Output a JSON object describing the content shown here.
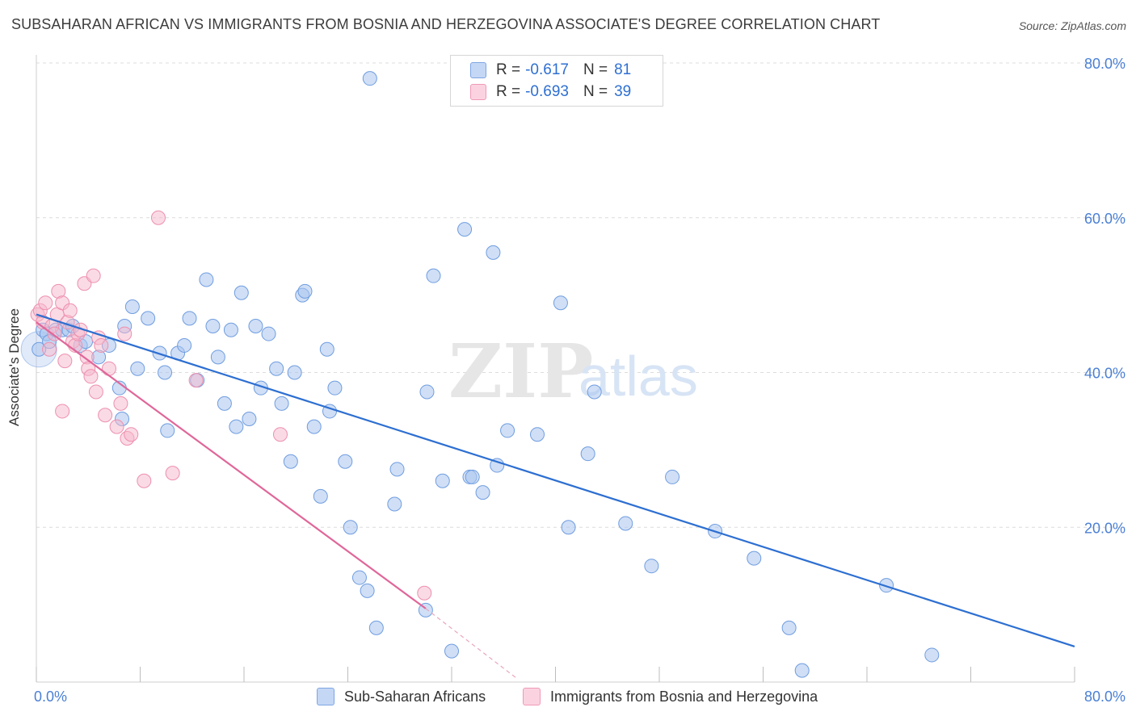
{
  "title": "SUBSAHARAN AFRICAN VS IMMIGRANTS FROM BOSNIA AND HERZEGOVINA ASSOCIATE'S DEGREE CORRELATION CHART",
  "source": "Source: ZipAtlas.com",
  "watermark": {
    "zip": "ZIP",
    "atlas": "atlas"
  },
  "legend": {
    "r_label": "R =",
    "n_label": "N =",
    "rows": [
      {
        "r": "-0.617",
        "n": "81",
        "color": "#a9c4ef"
      },
      {
        "r": "-0.693",
        "n": "39",
        "color": "#f5b8cc"
      }
    ]
  },
  "bottom_legend": [
    "Sub-Saharan Africans",
    "Immigrants from Bosnia and Herzegovina"
  ],
  "colors": {
    "blue_fill": "#a9c4ef",
    "blue_stroke": "#6f9de0",
    "blue_line": "#2d6fd1",
    "pink_fill": "#f5b8cc",
    "pink_stroke": "#ee8fae",
    "pink_line": "#e0679a",
    "grid": "#dcdcdc",
    "tick_text": "#4a7fd4"
  },
  "chart_data": {
    "type": "scatter",
    "ylabel": "Associate's Degree",
    "xlabel": "",
    "xlim": [
      0,
      80
    ],
    "ylim": [
      0,
      80
    ],
    "x_tick_labels": [
      {
        "v": 0,
        "t": "0.0%"
      },
      {
        "v": 80,
        "t": "80.0%"
      }
    ],
    "y_tick_labels": [
      {
        "v": 20,
        "t": "20.0%"
      },
      {
        "v": 40,
        "t": "40.0%"
      },
      {
        "v": 60,
        "t": "60.0%"
      },
      {
        "v": 80,
        "t": "80.0%"
      }
    ],
    "grid": true,
    "series": [
      {
        "name": "Sub-Saharan Africans",
        "r": -0.617,
        "n": 81,
        "trend": [
          [
            0,
            47.5
          ],
          [
            80,
            4.6
          ]
        ],
        "points": [
          [
            0.2,
            43.0
          ],
          [
            0.5,
            45.5
          ],
          [
            0.8,
            45.0
          ],
          [
            1.0,
            44.0
          ],
          [
            1.5,
            45.5
          ],
          [
            2.0,
            45.5
          ],
          [
            2.5,
            45.5
          ],
          [
            2.8,
            46.0
          ],
          [
            3.4,
            43.5
          ],
          [
            3.8,
            44.0
          ],
          [
            4.8,
            42.0
          ],
          [
            5.6,
            43.5
          ],
          [
            6.4,
            38.0
          ],
          [
            6.6,
            34.0
          ],
          [
            6.8,
            46.0
          ],
          [
            7.4,
            48.5
          ],
          [
            7.8,
            40.5
          ],
          [
            8.6,
            47.0
          ],
          [
            9.5,
            42.5
          ],
          [
            9.9,
            40.0
          ],
          [
            10.1,
            32.5
          ],
          [
            10.9,
            42.5
          ],
          [
            11.4,
            43.5
          ],
          [
            11.8,
            47.0
          ],
          [
            12.4,
            39.0
          ],
          [
            13.1,
            52.0
          ],
          [
            13.6,
            46.0
          ],
          [
            14.0,
            42.0
          ],
          [
            14.5,
            36.0
          ],
          [
            15.0,
            45.5
          ],
          [
            15.4,
            33.0
          ],
          [
            15.8,
            50.3
          ],
          [
            16.4,
            34.0
          ],
          [
            16.9,
            46.0
          ],
          [
            17.3,
            38.0
          ],
          [
            17.9,
            45.0
          ],
          [
            18.5,
            40.5
          ],
          [
            18.9,
            36.0
          ],
          [
            19.6,
            28.5
          ],
          [
            19.9,
            40.0
          ],
          [
            20.5,
            50.0
          ],
          [
            20.7,
            50.5
          ],
          [
            21.4,
            33.0
          ],
          [
            21.9,
            24.0
          ],
          [
            22.4,
            43.0
          ],
          [
            22.6,
            35.0
          ],
          [
            23.0,
            38.0
          ],
          [
            23.8,
            28.5
          ],
          [
            24.2,
            20.0
          ],
          [
            24.9,
            13.5
          ],
          [
            25.5,
            11.8
          ],
          [
            25.7,
            78.0
          ],
          [
            26.2,
            7.0
          ],
          [
            27.6,
            23.0
          ],
          [
            27.8,
            27.5
          ],
          [
            30.1,
            37.5
          ],
          [
            30.6,
            52.5
          ],
          [
            31.3,
            26.0
          ],
          [
            32.0,
            4.0
          ],
          [
            33.0,
            58.5
          ],
          [
            33.4,
            26.5
          ],
          [
            33.6,
            26.5
          ],
          [
            34.4,
            24.5
          ],
          [
            35.2,
            55.5
          ],
          [
            35.5,
            28.0
          ],
          [
            36.3,
            32.5
          ],
          [
            38.6,
            32.0
          ],
          [
            40.4,
            49.0
          ],
          [
            41.0,
            20.0
          ],
          [
            42.5,
            29.5
          ],
          [
            43.0,
            37.5
          ],
          [
            45.4,
            20.5
          ],
          [
            47.4,
            15.0
          ],
          [
            49.0,
            26.5
          ],
          [
            52.3,
            19.5
          ],
          [
            55.3,
            16.0
          ],
          [
            58.0,
            7.0
          ],
          [
            59.0,
            1.5
          ],
          [
            65.5,
            12.5
          ],
          [
            69.0,
            3.5
          ],
          [
            30.0,
            9.3
          ]
        ]
      },
      {
        "name": "Immigrants from Bosnia and Herzegovina",
        "r": -0.693,
        "n": 39,
        "trend": [
          [
            0,
            46.5
          ],
          [
            30,
            9.5
          ]
        ],
        "trend_dashed": [
          [
            30,
            9.5
          ],
          [
            37,
            0.5
          ]
        ],
        "points": [
          [
            0.1,
            47.5
          ],
          [
            0.3,
            48.0
          ],
          [
            0.5,
            46.5
          ],
          [
            0.7,
            49.0
          ],
          [
            1.0,
            43.0
          ],
          [
            1.2,
            46.0
          ],
          [
            1.4,
            45.0
          ],
          [
            1.6,
            47.5
          ],
          [
            1.7,
            50.5
          ],
          [
            2.0,
            49.0
          ],
          [
            2.2,
            41.5
          ],
          [
            2.4,
            46.5
          ],
          [
            2.6,
            48.0
          ],
          [
            2.8,
            44.0
          ],
          [
            3.0,
            43.5
          ],
          [
            3.2,
            45.0
          ],
          [
            3.4,
            45.5
          ],
          [
            3.7,
            51.5
          ],
          [
            3.9,
            42.0
          ],
          [
            4.0,
            40.5
          ],
          [
            4.2,
            39.5
          ],
          [
            4.4,
            52.5
          ],
          [
            4.6,
            37.5
          ],
          [
            4.8,
            44.5
          ],
          [
            5.0,
            43.5
          ],
          [
            5.3,
            34.5
          ],
          [
            5.6,
            40.5
          ],
          [
            6.2,
            33.0
          ],
          [
            6.5,
            36.0
          ],
          [
            6.8,
            45.0
          ],
          [
            7.0,
            31.5
          ],
          [
            7.3,
            32.0
          ],
          [
            8.3,
            26.0
          ],
          [
            9.4,
            60.0
          ],
          [
            10.5,
            27.0
          ],
          [
            12.3,
            39.0
          ],
          [
            18.8,
            32.0
          ],
          [
            29.9,
            11.5
          ],
          [
            2.0,
            35.0
          ]
        ]
      }
    ]
  }
}
